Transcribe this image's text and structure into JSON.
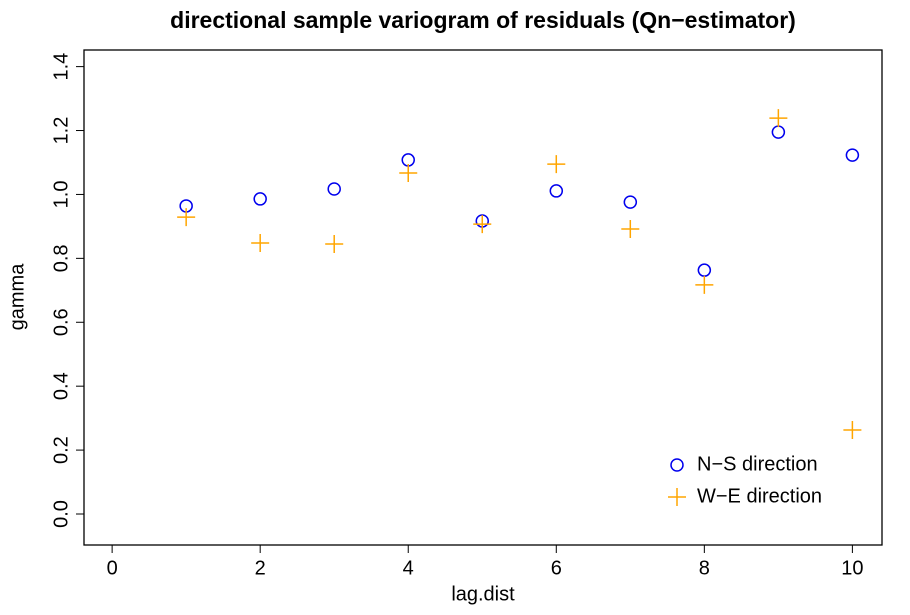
{
  "chart_data": {
    "type": "scatter",
    "title": "directional sample variogram of residuals (Qn−estimator)",
    "xlabel": "lag.dist",
    "ylabel": "gamma",
    "series": [
      {
        "name": "N−S direction",
        "color": "#0000ee",
        "marker": "circle",
        "x": [
          1,
          2,
          3,
          4,
          5,
          6,
          7,
          8,
          9,
          10
        ],
        "values": [
          0.964,
          0.986,
          1.017,
          1.108,
          0.917,
          1.011,
          0.976,
          0.763,
          1.195,
          1.123
        ]
      },
      {
        "name": "W−E direction",
        "color": "#ffa500",
        "marker": "plus",
        "x": [
          1,
          2,
          3,
          4,
          5,
          6,
          7,
          8,
          9,
          10
        ],
        "values": [
          0.929,
          0.848,
          0.845,
          1.067,
          0.907,
          1.095,
          0.892,
          0.717,
          1.239,
          0.263
        ]
      }
    ],
    "xlim": [
      -0.38,
      10.4
    ],
    "ylim": [
      -0.097,
      1.452
    ],
    "xticks": [
      0,
      2,
      4,
      6,
      8,
      10
    ],
    "yticks": [
      {
        "value": 0,
        "label": "0.0"
      },
      {
        "value": 0.2,
        "label": "0.2"
      },
      {
        "value": 0.4,
        "label": "0.4"
      },
      {
        "value": 0.6,
        "label": "0.6"
      },
      {
        "value": 0.8,
        "label": "0.8"
      },
      {
        "value": 1.0,
        "label": "1.0"
      },
      {
        "value": 1.2,
        "label": "1.2"
      },
      {
        "value": 1.4,
        "label": "1.4"
      }
    ],
    "legend": "bottom-right"
  }
}
